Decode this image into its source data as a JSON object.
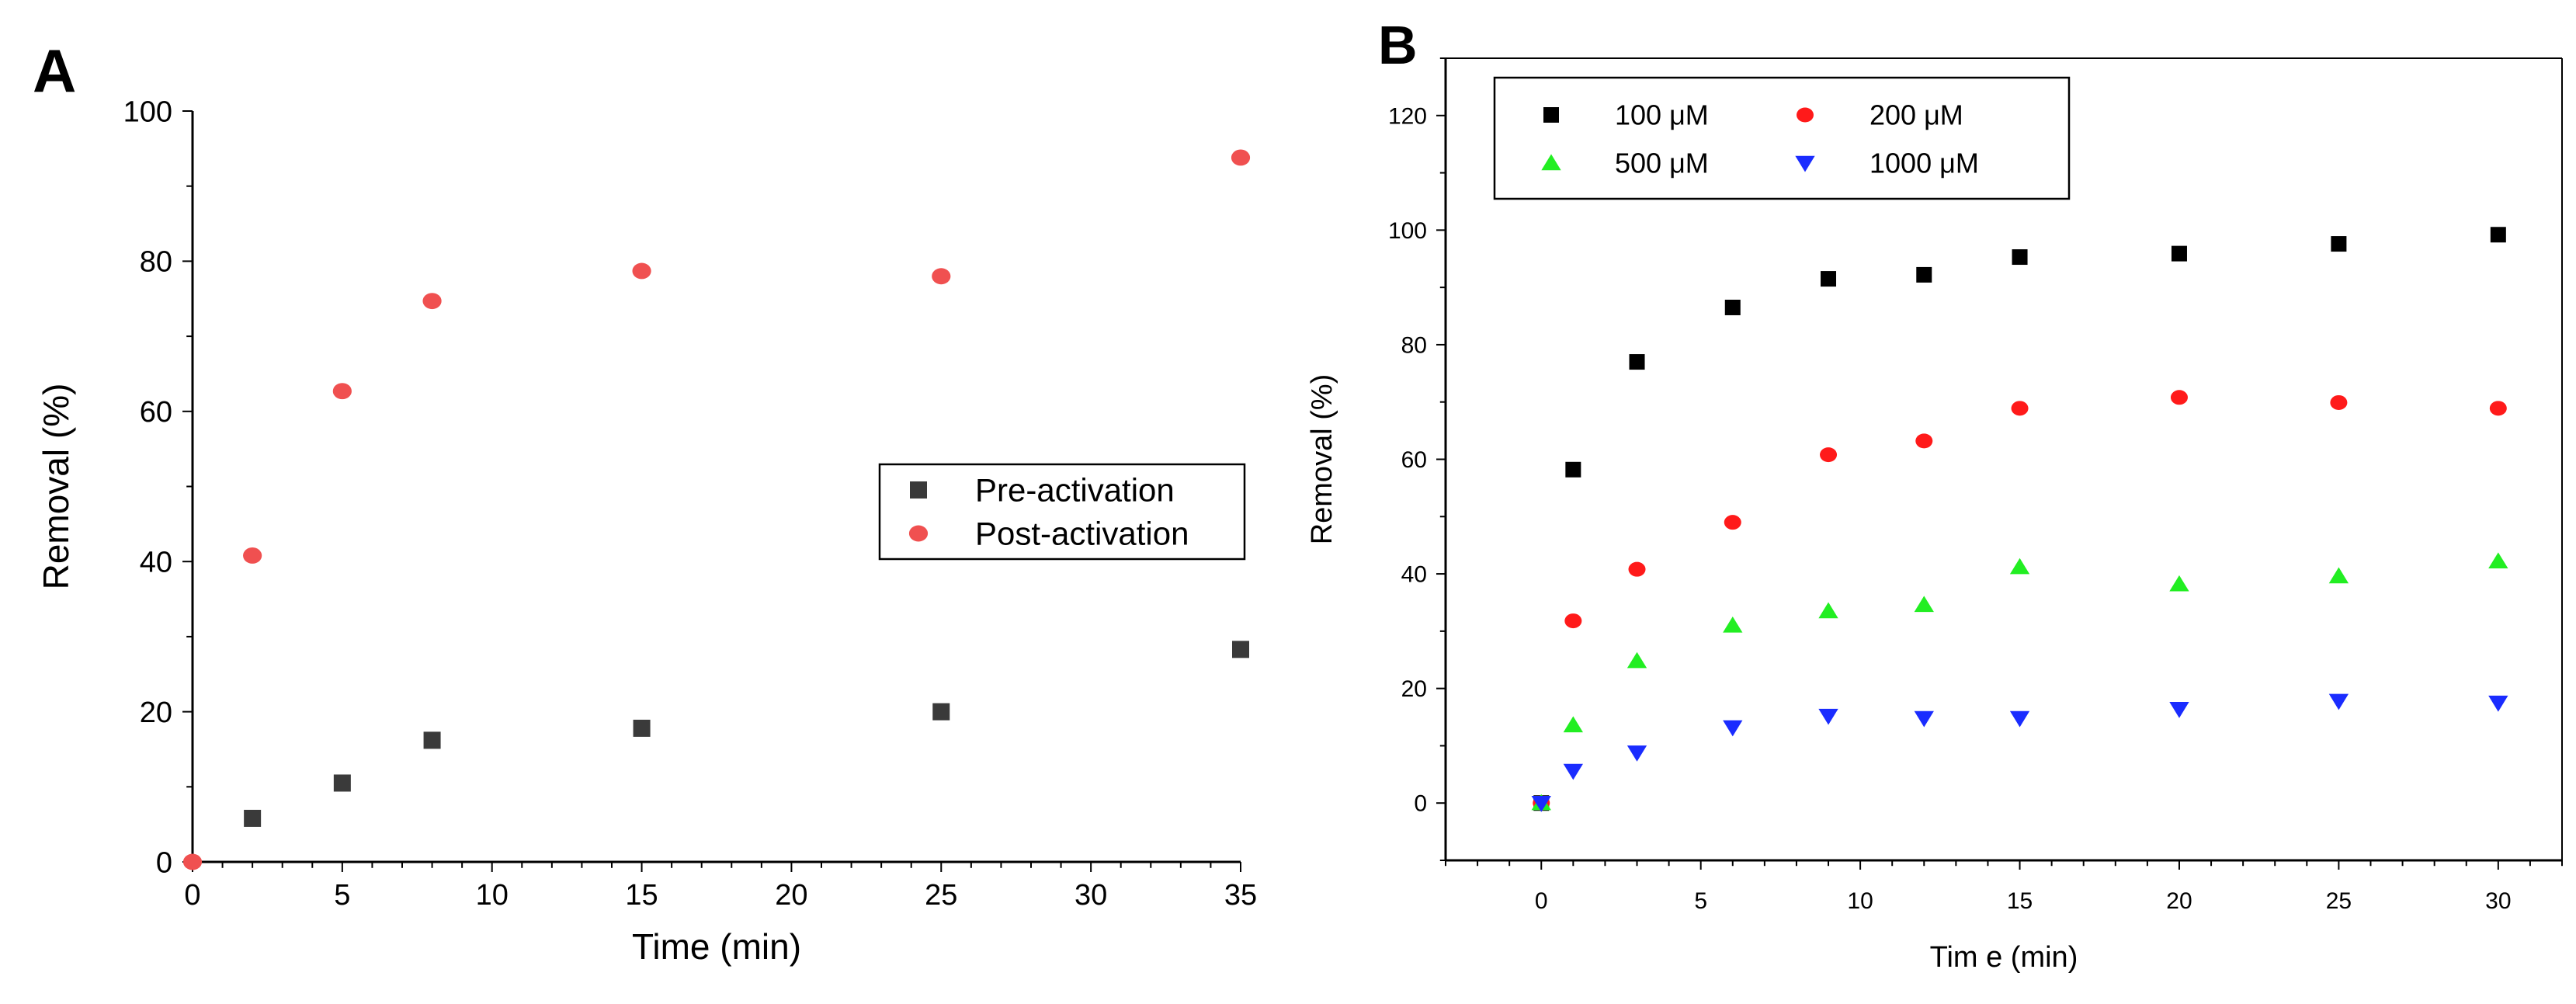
{
  "colors": {
    "axis": "#000000",
    "pre_activation": "#3a3a3a",
    "post_activation": "#f05050",
    "s100": "#000000",
    "s200": "#ff1a1a",
    "s500": "#22ee22",
    "s1000": "#1a2cff"
  },
  "chart_data": [
    {
      "panel_label": "A",
      "type": "scatter",
      "title": "",
      "xlabel": "Time (min)",
      "ylabel": "Removal (%)",
      "xlim": [
        0,
        35
      ],
      "ylim": [
        0,
        100
      ],
      "xticks": [
        "0",
        "5",
        "10",
        "15",
        "20",
        "25",
        "30",
        "35"
      ],
      "yticks": [
        "0",
        "20",
        "40",
        "60",
        "80",
        "100"
      ],
      "legend_position": "right",
      "series": [
        {
          "name": "Pre-activation",
          "marker": "square",
          "color_key": "pre_activation",
          "x": [
            2,
            5,
            8,
            15,
            25,
            35
          ],
          "y": [
            5.8,
            10.5,
            16.2,
            17.8,
            20.0,
            28.3
          ]
        },
        {
          "name": "Post-activation",
          "marker": "circle",
          "color_key": "post_activation",
          "x": [
            0,
            2,
            5,
            8,
            15,
            25,
            35
          ],
          "y": [
            0,
            40.8,
            62.7,
            74.7,
            78.7,
            78.0,
            93.8
          ]
        }
      ]
    },
    {
      "panel_label": "B",
      "type": "scatter",
      "title": "",
      "xlabel": "Tim e (min)",
      "ylabel": "Removal (%)",
      "xlim": [
        -3,
        32
      ],
      "ylim": [
        -10,
        130
      ],
      "xticks": [
        "0",
        "5",
        "10",
        "15",
        "20",
        "25",
        "30"
      ],
      "yticks": [
        "0",
        "20",
        "40",
        "60",
        "80",
        "100",
        "120"
      ],
      "legend_position": "top-left",
      "series": [
        {
          "name": "100 μM",
          "marker": "square",
          "color_key": "s100",
          "x": [
            0,
            1,
            3,
            6,
            9,
            12,
            15,
            20,
            25,
            30
          ],
          "y": [
            0,
            58.2,
            77.0,
            86.5,
            91.5,
            92.2,
            95.3,
            95.9,
            97.6,
            99.2
          ]
        },
        {
          "name": "200 μM",
          "marker": "circle",
          "color_key": "s200",
          "x": [
            0,
            1,
            3,
            6,
            9,
            12,
            15,
            20,
            25,
            30
          ],
          "y": [
            0,
            31.8,
            40.8,
            49.0,
            60.8,
            63.2,
            68.9,
            70.8,
            69.9,
            68.9
          ]
        },
        {
          "name": "500 μM",
          "marker": "triangle-up",
          "color_key": "s500",
          "x": [
            0,
            1,
            3,
            6,
            9,
            12,
            15,
            20,
            25,
            30
          ],
          "y": [
            0,
            13.6,
            24.8,
            31.0,
            33.5,
            34.6,
            41.2,
            38.2,
            39.6,
            42.2
          ]
        },
        {
          "name": "1000 μM",
          "marker": "triangle-down",
          "color_key": "s1000",
          "x": [
            0,
            1,
            3,
            6,
            9,
            12,
            15,
            20,
            25,
            30
          ],
          "y": [
            0,
            5.6,
            8.8,
            13.2,
            15.2,
            14.8,
            14.8,
            16.4,
            17.8,
            17.5
          ]
        }
      ]
    }
  ]
}
